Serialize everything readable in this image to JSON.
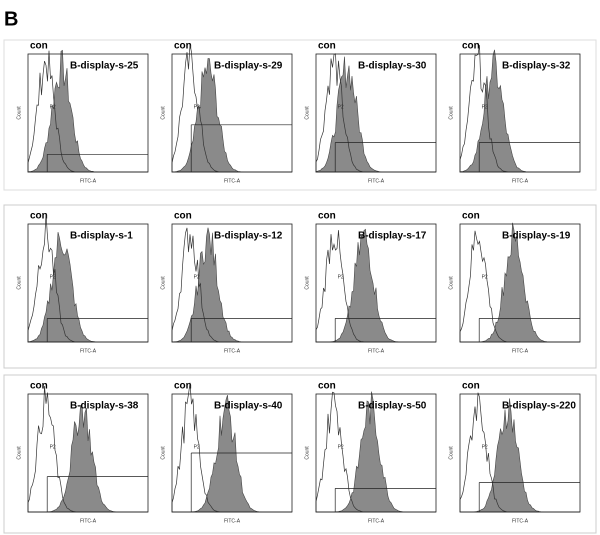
{
  "panel_label": "B",
  "panels": [
    {
      "control": "con",
      "sample": "B-display-s-25",
      "x_label": "FITC-A",
      "y_label": "Count",
      "gate": "P2"
    },
    {
      "control": "con",
      "sample": "B-display-s-29",
      "x_label": "FITC-A",
      "y_label": "Count",
      "gate": "P2"
    },
    {
      "control": "con",
      "sample": "B-display-s-30",
      "x_label": "FITC-A",
      "y_label": "Count",
      "gate": "P2"
    },
    {
      "control": "con",
      "sample": "B-display-s-32",
      "x_label": "FITC-A",
      "y_label": "Count",
      "gate": "P2"
    },
    {
      "control": "con",
      "sample": "B-display-s-1",
      "x_label": "FITC-A",
      "y_label": "Count",
      "gate": "P2"
    },
    {
      "control": "con",
      "sample": "B-display-s-12",
      "x_label": "FITC-A",
      "y_label": "Count",
      "gate": "P2"
    },
    {
      "control": "con",
      "sample": "B-display-s-17",
      "x_label": "FITC-A",
      "y_label": "Count",
      "gate": "P2"
    },
    {
      "control": "con",
      "sample": "B-display-s-19",
      "x_label": "FITC-A",
      "y_label": "Count",
      "gate": "P2"
    },
    {
      "control": "con",
      "sample": "B-display-s-38",
      "x_label": "FITC-A",
      "y_label": "Count",
      "gate": "P2"
    },
    {
      "control": "con",
      "sample": "B-display-s-40",
      "x_label": "FITC-A",
      "y_label": "Count",
      "gate": "P2"
    },
    {
      "control": "con",
      "sample": "B-display-s-50",
      "x_label": "FITC-A",
      "y_label": "Count",
      "gate": "P2"
    },
    {
      "control": "con",
      "sample": "B-display-s-220",
      "x_label": "FITC-A",
      "y_label": "Count",
      "gate": "P2"
    }
  ]
}
